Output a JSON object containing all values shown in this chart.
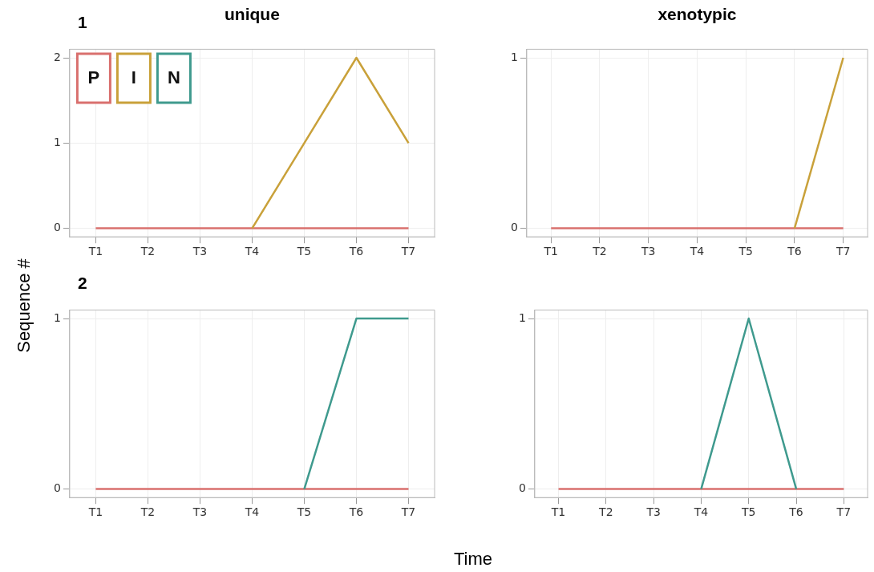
{
  "chart_data": [
    {
      "type": "line",
      "title": "unique",
      "annotations": [
        "1"
      ],
      "categories": [
        "T1",
        "T2",
        "T3",
        "T4",
        "T5",
        "T6",
        "T7"
      ],
      "ylim": [
        -0.1,
        2.1
      ],
      "yticks": [
        0,
        1,
        2
      ],
      "grid": true,
      "legend": "top left",
      "series": [
        {
          "name": "P",
          "color": "#d9706e",
          "values": [
            0,
            0,
            0,
            0,
            0,
            0,
            0
          ]
        },
        {
          "name": "I",
          "color": "#c9a13a",
          "values": [
            null,
            null,
            null,
            0,
            1,
            2,
            1
          ]
        }
      ]
    },
    {
      "type": "line",
      "title": "xenotypic",
      "categories": [
        "T1",
        "T2",
        "T3",
        "T4",
        "T5",
        "T6",
        "T7"
      ],
      "ylim": [
        -0.05,
        1.05
      ],
      "yticks": [
        0,
        1
      ],
      "grid": true,
      "series": [
        {
          "color": "#d9706e",
          "values": [
            0,
            0,
            0,
            0,
            0,
            0,
            0
          ]
        },
        {
          "color": "#c9a13a",
          "values": [
            null,
            null,
            null,
            null,
            null,
            0,
            1
          ]
        }
      ]
    },
    {
      "type": "line",
      "annotations": [
        "2"
      ],
      "xlabel": "Time",
      "ylabel": "Sequence #",
      "categories": [
        "T1",
        "T2",
        "T3",
        "T4",
        "T5",
        "T6",
        "T7"
      ],
      "ylim": [
        -0.05,
        1.05
      ],
      "yticks": [
        0,
        1
      ],
      "grid": true,
      "series": [
        {
          "color": "#d9706e",
          "values": [
            0,
            0,
            0,
            0,
            0,
            0,
            0
          ]
        },
        {
          "name": "N",
          "color": "#3f9a8e",
          "values": [
            null,
            null,
            null,
            null,
            0,
            1,
            1
          ]
        }
      ]
    },
    {
      "type": "line",
      "categories": [
        "T1",
        "T2",
        "T3",
        "T4",
        "T5",
        "T6",
        "T7"
      ],
      "ylim": [
        -0.05,
        1.05
      ],
      "yticks": [
        0,
        1
      ],
      "grid": true,
      "series": [
        {
          "color": "#d9706e",
          "values": [
            0,
            0,
            0,
            0,
            0,
            0,
            0
          ]
        },
        {
          "color": "#3f9a8e",
          "values": [
            null,
            null,
            null,
            0,
            1,
            0,
            null
          ]
        }
      ]
    }
  ]
}
